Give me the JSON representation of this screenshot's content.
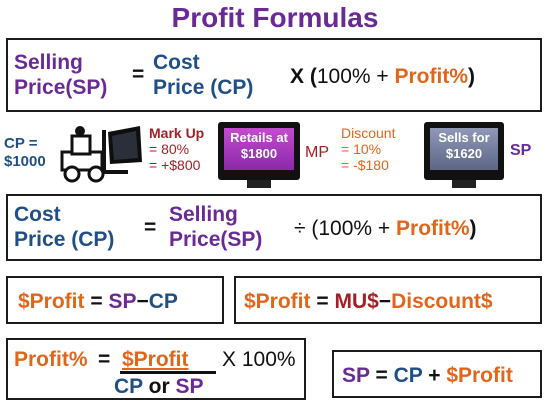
{
  "title": "Profit Formulas",
  "row1": {
    "sp_line1": "Selling",
    "sp_line2": "Price(SP)",
    "eq": "=",
    "cp_line1": "Cost",
    "cp_line2": "Price (CP)",
    "times": "X (",
    "hundred": "100% + ",
    "profit_pct": "Profit%",
    "close": ")"
  },
  "illustration": {
    "cp_label": "CP =",
    "cp_value": "$1000",
    "markup_title": "Mark Up",
    "markup_pct": "= 80%",
    "markup_amt": "= +$800",
    "retail_line1": "Retails at",
    "retail_line2": "$1800",
    "mp_label": "MP",
    "discount_title": "Discount",
    "discount_pct": "= 10%",
    "discount_amt": "= -$180",
    "sells_line1": "Sells for",
    "sells_line2": "$1620",
    "sp_label": "SP"
  },
  "row2": {
    "cp_line1": "Cost",
    "cp_line2": "Price (CP)",
    "eq": "=",
    "sp_line1": "Selling",
    "sp_line2": "Price(SP)",
    "div": "÷ (",
    "hundred": "100% + ",
    "profit_pct": "Profit%",
    "close": ")"
  },
  "formula_a": {
    "lhs": "$Profit",
    "eq": " = ",
    "sp": "SP",
    "minus": "−",
    "cp": "CP"
  },
  "formula_b": {
    "lhs": "$Profit",
    "eq": " = ",
    "mu": "MU$",
    "minus": "−",
    "disc": "Discount$"
  },
  "formula_c": {
    "lhs": "Profit%",
    "eq": "=",
    "num": "$Profit",
    "times": "X 100%",
    "den_cp": "CP",
    "den_or": " or ",
    "den_sp": "SP"
  },
  "formula_d": {
    "sp": "SP",
    "eq": " = ",
    "cp": "CP",
    "plus": " + ",
    "profit": "$Profit"
  },
  "colors": {
    "purple": "#6a2a96",
    "blue": "#1f4f86",
    "orange": "#e0661c",
    "red": "#a31f26"
  }
}
